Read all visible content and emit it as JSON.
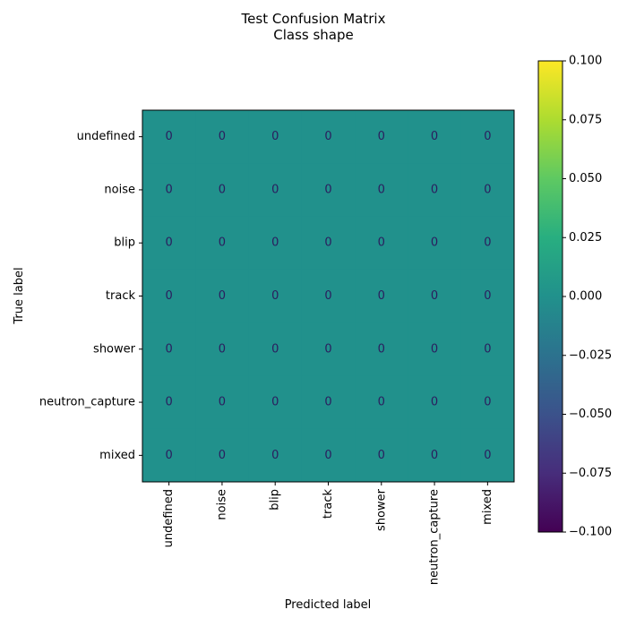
{
  "chart_data": {
    "type": "heatmap",
    "title": "Test Confusion Matrix",
    "subtitle": "Class shape",
    "xlabel": "Predicted label",
    "ylabel": "True label",
    "x_categories": [
      "undefined",
      "noise",
      "blip",
      "track",
      "shower",
      "neutron_capture",
      "mixed"
    ],
    "y_categories": [
      "undefined",
      "noise",
      "blip",
      "track",
      "shower",
      "neutron_capture",
      "mixed"
    ],
    "values": [
      [
        0,
        0,
        0,
        0,
        0,
        0,
        0
      ],
      [
        0,
        0,
        0,
        0,
        0,
        0,
        0
      ],
      [
        0,
        0,
        0,
        0,
        0,
        0,
        0
      ],
      [
        0,
        0,
        0,
        0,
        0,
        0,
        0
      ],
      [
        0,
        0,
        0,
        0,
        0,
        0,
        0
      ],
      [
        0,
        0,
        0,
        0,
        0,
        0,
        0
      ],
      [
        0,
        0,
        0,
        0,
        0,
        0,
        0
      ]
    ],
    "colormap": "viridis",
    "colorbar": {
      "range": [
        -0.1,
        0.1
      ],
      "ticks": [
        -0.1,
        -0.075,
        -0.05,
        -0.025,
        0.0,
        0.025,
        0.05,
        0.075,
        0.1
      ],
      "tick_labels": [
        "−0.100",
        "−0.075",
        "−0.050",
        "−0.025",
        "0.000",
        "0.025",
        "0.050",
        "0.075",
        "0.100"
      ]
    },
    "cell_text_color": "#2b1d5e",
    "cell_fill_color": "#21918c",
    "x_tick_rotation": "vertical"
  }
}
